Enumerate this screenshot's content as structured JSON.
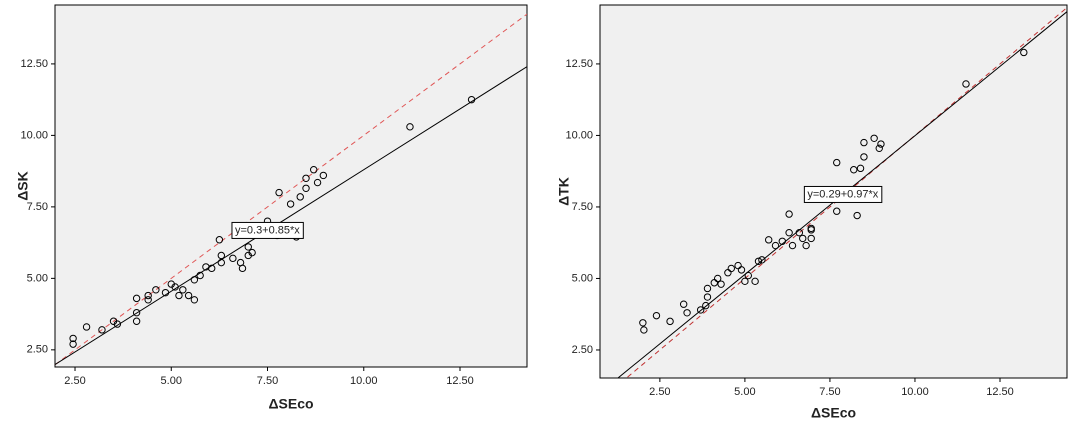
{
  "chart_data": [
    {
      "type": "scatter",
      "x_label": "ΔSEco",
      "y_label": "ΔSK",
      "xlim": [
        1.98,
        14.24
      ],
      "ylim": [
        1.9,
        14.56
      ],
      "xticks": [
        {
          "value": 2.5,
          "label": "2.50"
        },
        {
          "value": 5,
          "label": "5.00"
        },
        {
          "value": 7.5,
          "label": "7.50"
        },
        {
          "value": 10,
          "label": "10.00"
        },
        {
          "value": 12.5,
          "label": "12.50"
        }
      ],
      "yticks": [
        {
          "value": 2.5,
          "label": "2.50"
        },
        {
          "value": 5,
          "label": "5.00"
        },
        {
          "value": 7.5,
          "label": "7.50"
        },
        {
          "value": 10,
          "label": "10.00"
        },
        {
          "value": 12.5,
          "label": "12.50"
        }
      ],
      "x": [
        2.45,
        2.45,
        2.8,
        3.2,
        3.5,
        3.6,
        4.1,
        4.1,
        4.1,
        4.4,
        4.4,
        4.6,
        4.85,
        5.0,
        5.1,
        5.2,
        5.3,
        5.45,
        5.6,
        5.6,
        5.75,
        5.9,
        6.05,
        6.25,
        6.3,
        6.3,
        6.6,
        6.8,
        6.85,
        7.0,
        7.0,
        7.1,
        7.5,
        7.75,
        7.8,
        8.1,
        8.25,
        8.35,
        8.5,
        8.5,
        8.7,
        8.8,
        8.95,
        11.2,
        12.8
      ],
      "values": [
        2.9,
        2.7,
        3.3,
        3.2,
        3.5,
        3.4,
        3.5,
        3.8,
        4.3,
        4.4,
        4.25,
        4.6,
        4.5,
        4.8,
        4.7,
        4.4,
        4.6,
        4.4,
        4.25,
        4.95,
        5.1,
        5.4,
        5.35,
        6.35,
        5.8,
        5.55,
        5.7,
        5.55,
        5.35,
        5.8,
        6.1,
        5.9,
        7.0,
        6.5,
        8.0,
        7.6,
        6.45,
        7.85,
        8.15,
        8.5,
        8.8,
        8.35,
        8.6,
        10.3,
        11.25
      ],
      "lines": [
        {
          "intercept": 0.3,
          "slope": 0.85,
          "color": "#000000",
          "label": "y=0.3+0.85*x"
        },
        {
          "intercept": 0,
          "slope": 1,
          "color": "#e05555",
          "dashed": true
        }
      ]
    },
    {
      "type": "scatter",
      "x_label": "ΔSEco",
      "y_label": "ΔTK",
      "xlim": [
        0.74,
        14.47
      ],
      "ylim": [
        1.52,
        14.56
      ],
      "xticks": [
        {
          "value": 2.5,
          "label": "2.50"
        },
        {
          "value": 5,
          "label": "5.00"
        },
        {
          "value": 7.5,
          "label": "7.50"
        },
        {
          "value": 10,
          "label": "10.00"
        },
        {
          "value": 12.5,
          "label": "12.50"
        }
      ],
      "yticks": [
        {
          "value": 2.5,
          "label": "2.50"
        },
        {
          "value": 5,
          "label": "5.00"
        },
        {
          "value": 7.5,
          "label": "7.50"
        },
        {
          "value": 10,
          "label": "10.00"
        },
        {
          "value": 12.5,
          "label": "12.50"
        }
      ],
      "x": [
        2.0,
        2.03,
        2.4,
        2.8,
        3.2,
        3.3,
        3.7,
        3.85,
        3.9,
        3.9,
        4.1,
        4.2,
        4.3,
        4.5,
        4.6,
        4.8,
        4.9,
        5.0,
        5.1,
        5.3,
        5.4,
        5.5,
        5.7,
        5.9,
        6.1,
        6.3,
        6.3,
        6.4,
        6.6,
        6.7,
        6.8,
        6.95,
        6.95,
        6.95,
        7.7,
        7.7,
        8.0,
        8.2,
        8.3,
        8.4,
        8.5,
        8.5,
        8.8,
        8.95,
        9.0,
        11.5,
        13.2
      ],
      "values": [
        3.45,
        3.2,
        3.7,
        3.5,
        4.1,
        3.8,
        3.9,
        4.05,
        4.35,
        4.65,
        4.85,
        5.0,
        4.8,
        5.2,
        5.35,
        5.45,
        5.3,
        4.9,
        5.1,
        4.9,
        5.6,
        5.65,
        6.35,
        6.15,
        6.3,
        7.25,
        6.6,
        6.15,
        6.6,
        6.4,
        6.15,
        6.7,
        6.4,
        6.75,
        9.05,
        7.35,
        7.9,
        8.8,
        7.2,
        8.85,
        9.75,
        9.25,
        9.9,
        9.55,
        9.7,
        11.8,
        12.9
      ],
      "lines": [
        {
          "intercept": 0.29,
          "slope": 0.97,
          "color": "#000000",
          "label": "y=0.29+0.97*x"
        },
        {
          "intercept": 0,
          "slope": 1,
          "color": "#c03030",
          "dashed": true
        }
      ]
    }
  ]
}
